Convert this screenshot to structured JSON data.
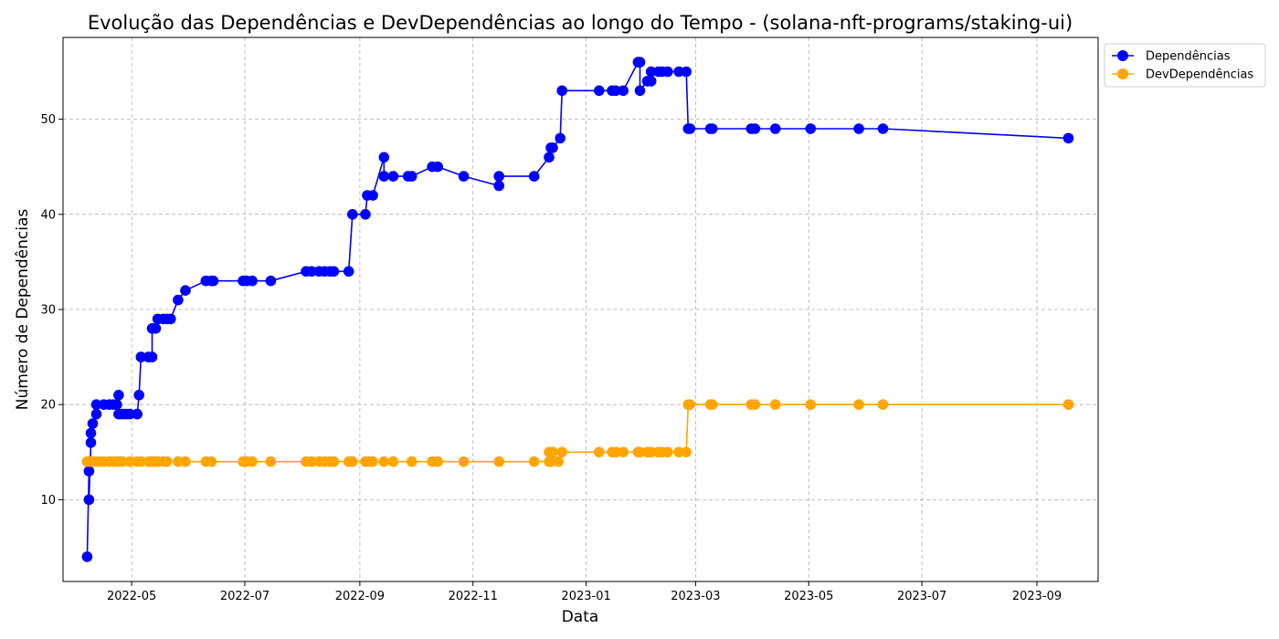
{
  "chart_data": {
    "type": "line",
    "title": "Evolução das Dependências e DevDependências ao longo do Tempo - (solana-nft-programs/staking-ui)",
    "xlabel": "Data",
    "ylabel": "Número de Dependências",
    "x_ticks": [
      {
        "date": "2022-05-01",
        "label": "2022-05"
      },
      {
        "date": "2022-07-01",
        "label": "2022-07"
      },
      {
        "date": "2022-09-01",
        "label": "2022-09"
      },
      {
        "date": "2022-11-01",
        "label": "2022-11"
      },
      {
        "date": "2023-01-01",
        "label": "2023-01"
      },
      {
        "date": "2023-03-01",
        "label": "2023-03"
      },
      {
        "date": "2023-05-01",
        "label": "2023-05"
      },
      {
        "date": "2023-07-01",
        "label": "2023-07"
      },
      {
        "date": "2023-09-01",
        "label": "2023-09"
      }
    ],
    "y_ticks": [
      10,
      20,
      30,
      40,
      50
    ],
    "xlim": [
      "2022-03-25",
      "2023-10-04"
    ],
    "ylim": [
      1.4,
      58.6
    ],
    "grid": true,
    "legend_position": "outside top-right",
    "series": [
      {
        "name": "Dependências",
        "color": "#0000ff",
        "points": [
          [
            "2022-04-07",
            4
          ],
          [
            "2022-04-08",
            13
          ],
          [
            "2022-04-08",
            10
          ],
          [
            "2022-04-09",
            16
          ],
          [
            "2022-04-09",
            17
          ],
          [
            "2022-04-10",
            18
          ],
          [
            "2022-04-12",
            19
          ],
          [
            "2022-04-12",
            20
          ],
          [
            "2022-04-16",
            20
          ],
          [
            "2022-04-19",
            20
          ],
          [
            "2022-04-21",
            20
          ],
          [
            "2022-04-23",
            20
          ],
          [
            "2022-04-24",
            21
          ],
          [
            "2022-04-24",
            19
          ],
          [
            "2022-04-26",
            19
          ],
          [
            "2022-04-28",
            19
          ],
          [
            "2022-04-30",
            19
          ],
          [
            "2022-05-04",
            19
          ],
          [
            "2022-05-05",
            21
          ],
          [
            "2022-05-06",
            25
          ],
          [
            "2022-05-10",
            25
          ],
          [
            "2022-05-12",
            25
          ],
          [
            "2022-05-12",
            28
          ],
          [
            "2022-05-14",
            28
          ],
          [
            "2022-05-15",
            29
          ],
          [
            "2022-05-18",
            29
          ],
          [
            "2022-05-20",
            29
          ],
          [
            "2022-05-22",
            29
          ],
          [
            "2022-05-26",
            31
          ],
          [
            "2022-05-30",
            32
          ],
          [
            "2022-06-10",
            33
          ],
          [
            "2022-06-13",
            33
          ],
          [
            "2022-06-14",
            33
          ],
          [
            "2022-06-30",
            33
          ],
          [
            "2022-07-02",
            33
          ],
          [
            "2022-07-05",
            33
          ],
          [
            "2022-07-15",
            33
          ],
          [
            "2022-08-03",
            34
          ],
          [
            "2022-08-06",
            34
          ],
          [
            "2022-08-10",
            34
          ],
          [
            "2022-08-13",
            34
          ],
          [
            "2022-08-16",
            34
          ],
          [
            "2022-08-18",
            34
          ],
          [
            "2022-08-26",
            34
          ],
          [
            "2022-08-28",
            40
          ],
          [
            "2022-09-04",
            40
          ],
          [
            "2022-09-05",
            42
          ],
          [
            "2022-09-08",
            42
          ],
          [
            "2022-09-14",
            46
          ],
          [
            "2022-09-14",
            44
          ],
          [
            "2022-09-19",
            44
          ],
          [
            "2022-09-27",
            44
          ],
          [
            "2022-09-29",
            44
          ],
          [
            "2022-10-10",
            45
          ],
          [
            "2022-10-13",
            45
          ],
          [
            "2022-10-27",
            44
          ],
          [
            "2022-11-15",
            43
          ],
          [
            "2022-11-15",
            44
          ],
          [
            "2022-12-04",
            44
          ],
          [
            "2022-12-12",
            46
          ],
          [
            "2022-12-13",
            47
          ],
          [
            "2022-12-14",
            47
          ],
          [
            "2022-12-18",
            48
          ],
          [
            "2022-12-19",
            53
          ],
          [
            "2023-01-08",
            53
          ],
          [
            "2023-01-15",
            53
          ],
          [
            "2023-01-17",
            53
          ],
          [
            "2023-01-21",
            53
          ],
          [
            "2023-01-29",
            56
          ],
          [
            "2023-01-30",
            56
          ],
          [
            "2023-01-30",
            53
          ],
          [
            "2023-02-03",
            54
          ],
          [
            "2023-02-05",
            54
          ],
          [
            "2023-02-05",
            55
          ],
          [
            "2023-02-09",
            55
          ],
          [
            "2023-02-11",
            55
          ],
          [
            "2023-02-14",
            55
          ],
          [
            "2023-02-20",
            55
          ],
          [
            "2023-02-24",
            55
          ],
          [
            "2023-02-25",
            49
          ],
          [
            "2023-02-26",
            49
          ],
          [
            "2023-03-09",
            49
          ],
          [
            "2023-03-10",
            49
          ],
          [
            "2023-03-31",
            49
          ],
          [
            "2023-04-02",
            49
          ],
          [
            "2023-04-13",
            49
          ],
          [
            "2023-05-02",
            49
          ],
          [
            "2023-05-28",
            49
          ],
          [
            "2023-06-10",
            49
          ],
          [
            "2023-09-18",
            48
          ]
        ]
      },
      {
        "name": "DevDependências",
        "color": "#ffa500",
        "points": [
          [
            "2022-04-07",
            14
          ],
          [
            "2022-04-08",
            14
          ],
          [
            "2022-04-09",
            14
          ],
          [
            "2022-04-10",
            14
          ],
          [
            "2022-04-12",
            14
          ],
          [
            "2022-04-14",
            14
          ],
          [
            "2022-04-16",
            14
          ],
          [
            "2022-04-19",
            14
          ],
          [
            "2022-04-21",
            14
          ],
          [
            "2022-04-23",
            14
          ],
          [
            "2022-04-24",
            14
          ],
          [
            "2022-04-26",
            14
          ],
          [
            "2022-04-30",
            14
          ],
          [
            "2022-05-04",
            14
          ],
          [
            "2022-05-06",
            14
          ],
          [
            "2022-05-10",
            14
          ],
          [
            "2022-05-12",
            14
          ],
          [
            "2022-05-14",
            14
          ],
          [
            "2022-05-15",
            14
          ],
          [
            "2022-05-18",
            14
          ],
          [
            "2022-05-20",
            14
          ],
          [
            "2022-05-26",
            14
          ],
          [
            "2022-05-30",
            14
          ],
          [
            "2022-06-10",
            14
          ],
          [
            "2022-06-13",
            14
          ],
          [
            "2022-06-30",
            14
          ],
          [
            "2022-07-02",
            14
          ],
          [
            "2022-07-05",
            14
          ],
          [
            "2022-07-15",
            14
          ],
          [
            "2022-08-03",
            14
          ],
          [
            "2022-08-06",
            14
          ],
          [
            "2022-08-10",
            14
          ],
          [
            "2022-08-13",
            14
          ],
          [
            "2022-08-16",
            14
          ],
          [
            "2022-08-18",
            14
          ],
          [
            "2022-08-26",
            14
          ],
          [
            "2022-08-28",
            14
          ],
          [
            "2022-09-04",
            14
          ],
          [
            "2022-09-06",
            14
          ],
          [
            "2022-09-08",
            14
          ],
          [
            "2022-09-14",
            14
          ],
          [
            "2022-09-19",
            14
          ],
          [
            "2022-09-29",
            14
          ],
          [
            "2022-10-10",
            14
          ],
          [
            "2022-10-13",
            14
          ],
          [
            "2022-10-27",
            14
          ],
          [
            "2022-11-15",
            14
          ],
          [
            "2022-12-04",
            14
          ],
          [
            "2022-12-12",
            14
          ],
          [
            "2022-12-12",
            15
          ],
          [
            "2022-12-13",
            14
          ],
          [
            "2022-12-14",
            15
          ],
          [
            "2022-12-17",
            14
          ],
          [
            "2022-12-19",
            15
          ],
          [
            "2023-01-08",
            15
          ],
          [
            "2023-01-15",
            15
          ],
          [
            "2023-01-17",
            15
          ],
          [
            "2023-01-21",
            15
          ],
          [
            "2023-01-29",
            15
          ],
          [
            "2023-01-30",
            15
          ],
          [
            "2023-02-03",
            15
          ],
          [
            "2023-02-05",
            15
          ],
          [
            "2023-02-09",
            15
          ],
          [
            "2023-02-11",
            15
          ],
          [
            "2023-02-14",
            15
          ],
          [
            "2023-02-20",
            15
          ],
          [
            "2023-02-24",
            15
          ],
          [
            "2023-02-25",
            20
          ],
          [
            "2023-02-26",
            20
          ],
          [
            "2023-03-09",
            20
          ],
          [
            "2023-03-10",
            20
          ],
          [
            "2023-03-31",
            20
          ],
          [
            "2023-04-02",
            20
          ],
          [
            "2023-04-13",
            20
          ],
          [
            "2023-05-02",
            20
          ],
          [
            "2023-05-28",
            20
          ],
          [
            "2023-06-10",
            20
          ],
          [
            "2023-09-18",
            20
          ]
        ]
      }
    ]
  }
}
